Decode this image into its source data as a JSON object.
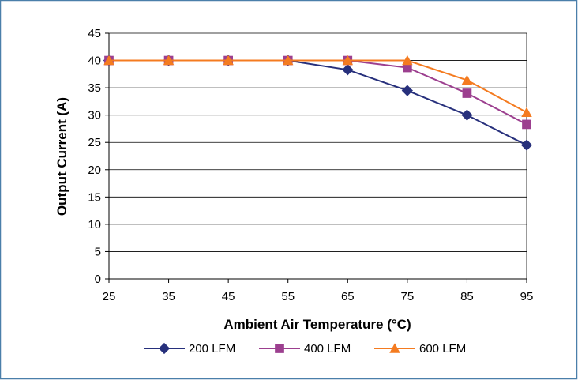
{
  "chart_data": {
    "type": "line",
    "title": "",
    "xlabel": "Ambient Air Temperature (°C)",
    "ylabel": "Output Current (A)",
    "x": [
      25,
      35,
      45,
      55,
      65,
      75,
      85,
      95
    ],
    "xlim": [
      25,
      95
    ],
    "ylim": [
      0,
      45
    ],
    "yticks": [
      0,
      5,
      10,
      15,
      20,
      25,
      30,
      35,
      40,
      45
    ],
    "grid": true,
    "legend_position": "bottom",
    "series": [
      {
        "name": "200 LFM",
        "marker": "diamond",
        "color": "#27307c",
        "values": [
          40,
          40,
          40,
          40,
          38.3,
          34.5,
          30,
          24.5
        ]
      },
      {
        "name": "400 LFM",
        "marker": "square",
        "color": "#9c3f8f",
        "values": [
          40,
          40,
          40,
          40,
          40,
          38.7,
          34,
          28.3
        ]
      },
      {
        "name": "600 LFM",
        "marker": "triangle",
        "color": "#f47b20",
        "values": [
          40,
          40,
          40,
          40,
          40,
          40,
          36.4,
          30.5
        ]
      }
    ]
  },
  "colors": {
    "frame_border": "#4a7faa",
    "gridline": "#000000",
    "axis": "#000000"
  }
}
